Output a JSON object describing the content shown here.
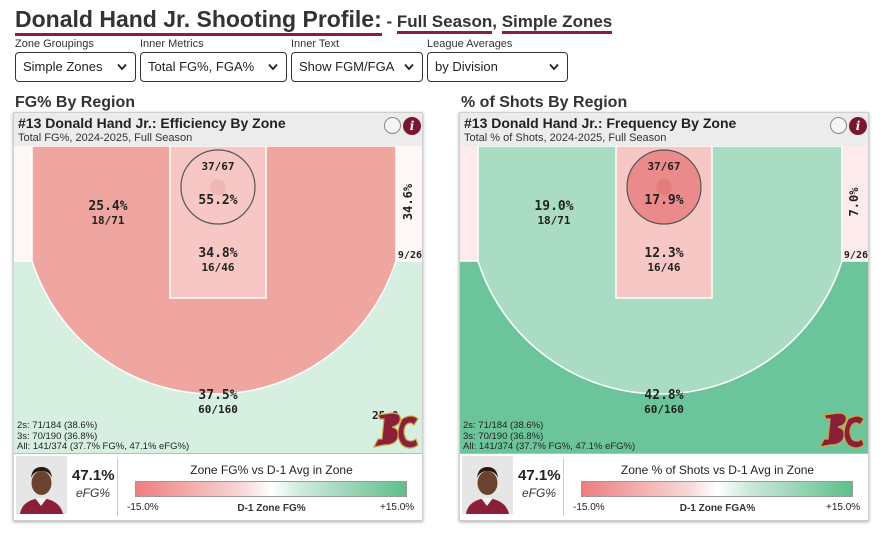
{
  "title": {
    "player": "Donald Hand Jr. Shooting Profile:",
    "dash": " - ",
    "season": "Full Season",
    "comma": ", ",
    "zones": "Simple Zones"
  },
  "controls": [
    {
      "label": "Zone Groupings",
      "value": "Simple Zones"
    },
    {
      "label": "Inner Metrics",
      "value": "Total FG%, FGA%"
    },
    {
      "label": "Inner Text",
      "value": "Show FGM/FGA"
    },
    {
      "label": "League Averages",
      "value": "by Division"
    }
  ],
  "colors": {
    "brand": "#8b1f3a",
    "cold_strong": "#eb8a8a",
    "cold": "#f0a6a0",
    "cold_light": "#f6c7c4",
    "cold_faint": "#fcebea",
    "neutral": "#fdf7f6",
    "warm_light": "#d6efe1",
    "warm": "#a9dcc2",
    "warm_strong": "#6cc59a"
  },
  "left": {
    "section": "FG% By Region",
    "card_title": "#13 Donald Hand Jr.: Efficiency By Zone",
    "card_sub": "Total FG%, 2024-2025, Full Season",
    "zones": {
      "rim": {
        "main": "55.2%",
        "sub": "37/67",
        "fill": "#f6c7c4",
        "circle_fill": "#f6c7c4"
      },
      "paint": {
        "main": "34.8%",
        "sub": "16/46",
        "fill": "#f6c7c4"
      },
      "mid": {
        "main": "25.4%",
        "sub": "18/71",
        "fill": "#f0a6a0"
      },
      "corner": {
        "main": "34.6%",
        "sub": "9/26",
        "fill": "#fdf7f6"
      },
      "three": {
        "main": "37.5%",
        "sub": "60/160",
        "fill": "#d6efe1"
      }
    },
    "summary": [
      "2s: 71/184 (38.6%)",
      "3s: 70/190 (36.8%)",
      "All: 141/374 (37.7% FG%, 47.1% eFG%)"
    ],
    "corner_partial": "25.0",
    "efg_value": "47.1%",
    "efg_label": "eFG%",
    "legend_title": "Zone FG% vs D-1 Avg in Zone",
    "legend_min": "-15.0%",
    "legend_mid": "D-1 Zone FG%",
    "legend_max": "+15.0%"
  },
  "right": {
    "section": "% of Shots By Region",
    "card_title": "#13 Donald Hand Jr.: Frequency By Zone",
    "card_sub": "Total % of Shots, 2024-2025, Full Season",
    "zones": {
      "rim": {
        "main": "17.9%",
        "sub": "37/67",
        "fill": "#f6c7c4",
        "circle_fill": "#eb8a8a"
      },
      "paint": {
        "main": "12.3%",
        "sub": "16/46",
        "fill": "#f6c7c4"
      },
      "mid": {
        "main": "19.0%",
        "sub": "18/71",
        "fill": "#a9dcc2"
      },
      "corner": {
        "main": "7.0%",
        "sub": "9/26",
        "fill": "#fcebea"
      },
      "three": {
        "main": "42.8%",
        "sub": "60/160",
        "fill": "#6cc59a"
      }
    },
    "summary": [
      "2s: 71/184 (38.6%)",
      "3s: 70/190 (36.8%)",
      "All: 141/374 (37.7% FG%, 47.1% eFG%)"
    ],
    "efg_value": "47.1%",
    "efg_label": "eFG%",
    "legend_title": "Zone % of Shots vs D-1 Avg in Zone",
    "legend_min": "-15.0%",
    "legend_mid": "D-1 Zone FGA%",
    "legend_max": "+15.0%"
  },
  "icons": {
    "chevron": "chevron-down-icon",
    "info": "info-icon",
    "toggle": "toggle-circle-icon",
    "logo": "bc-logo",
    "avatar": "player-avatar"
  }
}
